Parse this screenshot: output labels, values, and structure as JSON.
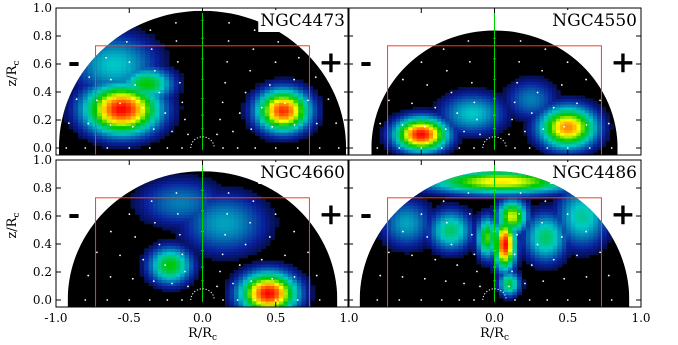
{
  "chart_data": {
    "type": "heatmap",
    "layout": "2x2 grid of half-disk maps",
    "xlabel": "R/R",
    "xlabel_sub": "c",
    "ylabel": "z/R",
    "ylabel_sub": "c",
    "xlim": [
      -1.0,
      1.0
    ],
    "ylim": [
      -0.05,
      1.0
    ],
    "xticks": [
      -1.0,
      -0.5,
      0.0,
      0.5,
      1.0
    ],
    "yticks": [
      0.0,
      0.2,
      0.4,
      0.6,
      0.8,
      1.0
    ],
    "xtick_labels_left": [
      "-1.0",
      "-0.5",
      "0.0",
      "0.5",
      "1.0"
    ],
    "xtick_labels_right": [
      "0.0",
      "0.5",
      "1.0"
    ],
    "ytick_labels": [
      "0.0",
      "0.2",
      "0.4",
      "0.6",
      "0.8",
      "1.0"
    ],
    "colors": {
      "background": "#000000",
      "low": "#0a1e9b",
      "mid": "#00c8c8",
      "green": "#00c800",
      "yellow": "#ffff00",
      "orange": "#ff8000",
      "peak": "#ff0000",
      "box": "#ff3c1e",
      "center_line": "#00d200",
      "markers": "#ffffff"
    },
    "box": {
      "x": [
        -0.73,
        0.73
      ],
      "y": [
        -0.05,
        0.73
      ]
    },
    "center_line_x": 0.0,
    "inner_circle_radius": 0.08,
    "panels": [
      {
        "name": "NGC4473",
        "left_sign": "-",
        "right_sign": "+",
        "disk_radius": 0.98,
        "blobs": [
          {
            "x": -0.55,
            "y": 0.28,
            "peak": 1.0,
            "sx": 0.17,
            "sy": 0.12
          },
          {
            "x": -0.38,
            "y": 0.46,
            "peak": 0.55,
            "sx": 0.12,
            "sy": 0.08
          },
          {
            "x": 0.55,
            "y": 0.27,
            "peak": 0.95,
            "sx": 0.12,
            "sy": 0.1
          },
          {
            "x": -0.6,
            "y": 0.6,
            "peak": 0.35,
            "sx": 0.2,
            "sy": 0.15
          }
        ]
      },
      {
        "name": "NGC4550",
        "left_sign": "-",
        "right_sign": "+",
        "disk_radius": 0.84,
        "blobs": [
          {
            "x": -0.5,
            "y": 0.1,
            "peak": 1.0,
            "sx": 0.12,
            "sy": 0.08
          },
          {
            "x": 0.5,
            "y": 0.15,
            "peak": 0.85,
            "sx": 0.13,
            "sy": 0.1
          },
          {
            "x": -0.15,
            "y": 0.25,
            "peak": 0.35,
            "sx": 0.15,
            "sy": 0.1
          },
          {
            "x": 0.25,
            "y": 0.35,
            "peak": 0.25,
            "sx": 0.12,
            "sy": 0.1
          }
        ]
      },
      {
        "name": "NGC4660",
        "left_sign": "-",
        "right_sign": "+",
        "disk_radius": 0.92,
        "blobs": [
          {
            "x": 0.45,
            "y": 0.05,
            "peak": 1.0,
            "sx": 0.13,
            "sy": 0.1
          },
          {
            "x": -0.22,
            "y": 0.25,
            "peak": 0.55,
            "sx": 0.1,
            "sy": 0.09
          },
          {
            "x": 0.15,
            "y": 0.55,
            "peak": 0.3,
            "sx": 0.2,
            "sy": 0.15
          },
          {
            "x": -0.15,
            "y": 0.7,
            "peak": 0.25,
            "sx": 0.2,
            "sy": 0.12
          }
        ]
      },
      {
        "name": "NGC4486",
        "left_sign": "-",
        "right_sign": "+",
        "disk_radius": 0.92,
        "blobs": [
          {
            "x": 0.07,
            "y": 0.4,
            "peak": 1.0,
            "sx": 0.05,
            "sy": 0.12
          },
          {
            "x": 0.12,
            "y": 0.6,
            "peak": 0.7,
            "sx": 0.07,
            "sy": 0.08
          },
          {
            "x": -0.05,
            "y": 0.45,
            "peak": 0.6,
            "sx": 0.05,
            "sy": 0.1
          },
          {
            "x": 0.05,
            "y": 0.85,
            "peak": 0.75,
            "sx": 0.35,
            "sy": 0.06
          },
          {
            "x": -0.3,
            "y": 0.5,
            "peak": 0.45,
            "sx": 0.1,
            "sy": 0.1
          },
          {
            "x": 0.35,
            "y": 0.45,
            "peak": 0.45,
            "sx": 0.1,
            "sy": 0.12
          },
          {
            "x": 0.6,
            "y": 0.6,
            "peak": 0.4,
            "sx": 0.12,
            "sy": 0.15
          },
          {
            "x": -0.6,
            "y": 0.55,
            "peak": 0.3,
            "sx": 0.12,
            "sy": 0.12
          },
          {
            "x": 0.1,
            "y": 0.12,
            "peak": 0.5,
            "sx": 0.05,
            "sy": 0.06
          }
        ]
      }
    ]
  }
}
